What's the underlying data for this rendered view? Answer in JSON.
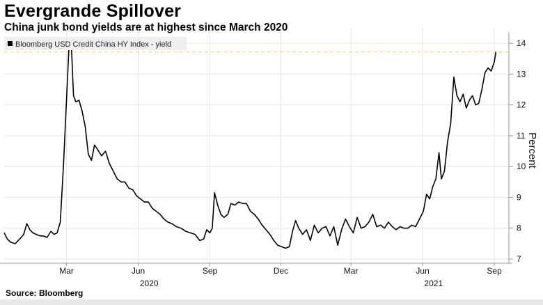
{
  "header": {
    "title": "Evergrande Spillover",
    "subtitle": "China junk bond yields are at highest since March 2020"
  },
  "footer": {
    "source": "Source: Bloomberg"
  },
  "colors": {
    "line": "#000000",
    "reference_line": "#f2e27a",
    "grid": "#e6e6e6",
    "legend_bg": "#efefef",
    "axis": "#9a9a9a"
  },
  "chart_data": {
    "type": "line",
    "title": "",
    "xlabel": "",
    "ylabel": "Percent",
    "legend": "Bloomberg USD Credit China HY Index - yield",
    "legend_position": "top-left",
    "grid": true,
    "ylim": [
      7,
      14.5
    ],
    "yticks": [
      7,
      8,
      9,
      10,
      11,
      12,
      13,
      14
    ],
    "xlim": [
      "2019-12-12",
      "2021-09-17"
    ],
    "xticks": [
      {
        "date": "2020-03-01",
        "label": "Mar"
      },
      {
        "date": "2020-06-01",
        "label": "Jun"
      },
      {
        "date": "2020-09-01",
        "label": "Sep"
      },
      {
        "date": "2020-12-01",
        "label": "Dec"
      },
      {
        "date": "2021-03-01",
        "label": "Mar"
      },
      {
        "date": "2021-06-01",
        "label": "Jun"
      },
      {
        "date": "2021-09-01",
        "label": "Sep"
      }
    ],
    "year_labels": [
      {
        "date": "2020-06-15",
        "label": "2020"
      },
      {
        "date": "2021-06-15",
        "label": "2021"
      }
    ],
    "reference_line": {
      "y": 13.72,
      "style": "dashed"
    },
    "series": [
      {
        "name": "Bloomberg USD Credit China HY Index - yield",
        "points": [
          [
            "2019-12-12",
            7.85
          ],
          [
            "2019-12-16",
            7.65
          ],
          [
            "2019-12-20",
            7.55
          ],
          [
            "2019-12-26",
            7.5
          ],
          [
            "2020-01-01",
            7.65
          ],
          [
            "2020-01-06",
            7.8
          ],
          [
            "2020-01-10",
            8.15
          ],
          [
            "2020-01-14",
            7.95
          ],
          [
            "2020-01-18",
            7.85
          ],
          [
            "2020-01-22",
            7.8
          ],
          [
            "2020-01-27",
            7.75
          ],
          [
            "2020-01-31",
            7.75
          ],
          [
            "2020-02-05",
            7.7
          ],
          [
            "2020-02-10",
            7.9
          ],
          [
            "2020-02-14",
            7.8
          ],
          [
            "2020-02-18",
            7.85
          ],
          [
            "2020-02-22",
            8.2
          ],
          [
            "2020-02-26",
            10.0
          ],
          [
            "2020-03-01",
            12.2
          ],
          [
            "2020-03-04",
            13.8
          ],
          [
            "2020-03-07",
            14.05
          ],
          [
            "2020-03-10",
            12.3
          ],
          [
            "2020-03-13",
            12.1
          ],
          [
            "2020-03-17",
            12.15
          ],
          [
            "2020-03-21",
            11.8
          ],
          [
            "2020-03-25",
            11.3
          ],
          [
            "2020-03-29",
            10.4
          ],
          [
            "2020-04-02",
            10.2
          ],
          [
            "2020-04-06",
            10.7
          ],
          [
            "2020-04-10",
            10.55
          ],
          [
            "2020-04-15",
            10.35
          ],
          [
            "2020-04-20",
            10.5
          ],
          [
            "2020-04-25",
            10.1
          ],
          [
            "2020-04-30",
            9.85
          ],
          [
            "2020-05-05",
            9.6
          ],
          [
            "2020-05-10",
            9.5
          ],
          [
            "2020-05-15",
            9.5
          ],
          [
            "2020-05-20",
            9.3
          ],
          [
            "2020-05-25",
            9.25
          ],
          [
            "2020-05-30",
            9.05
          ],
          [
            "2020-06-04",
            8.95
          ],
          [
            "2020-06-09",
            8.85
          ],
          [
            "2020-06-14",
            8.85
          ],
          [
            "2020-06-19",
            8.65
          ],
          [
            "2020-06-24",
            8.55
          ],
          [
            "2020-06-29",
            8.45
          ],
          [
            "2020-07-04",
            8.3
          ],
          [
            "2020-07-09",
            8.2
          ],
          [
            "2020-07-14",
            8.15
          ],
          [
            "2020-07-20",
            8.05
          ],
          [
            "2020-07-26",
            8.0
          ],
          [
            "2020-08-01",
            7.9
          ],
          [
            "2020-08-07",
            7.85
          ],
          [
            "2020-08-13",
            7.8
          ],
          [
            "2020-08-19",
            7.6
          ],
          [
            "2020-08-24",
            7.65
          ],
          [
            "2020-08-28",
            7.95
          ],
          [
            "2020-09-01",
            7.85
          ],
          [
            "2020-09-04",
            8.0
          ],
          [
            "2020-09-07",
            9.15
          ],
          [
            "2020-09-11",
            8.75
          ],
          [
            "2020-09-15",
            8.45
          ],
          [
            "2020-09-19",
            8.35
          ],
          [
            "2020-09-24",
            8.45
          ],
          [
            "2020-09-28",
            8.8
          ],
          [
            "2020-10-03",
            8.75
          ],
          [
            "2020-10-08",
            8.85
          ],
          [
            "2020-10-13",
            8.8
          ],
          [
            "2020-10-18",
            8.8
          ],
          [
            "2020-10-23",
            8.55
          ],
          [
            "2020-10-28",
            8.45
          ],
          [
            "2020-11-02",
            8.3
          ],
          [
            "2020-11-07",
            8.1
          ],
          [
            "2020-11-12",
            7.95
          ],
          [
            "2020-11-17",
            7.8
          ],
          [
            "2020-11-22",
            7.6
          ],
          [
            "2020-11-27",
            7.45
          ],
          [
            "2020-12-02",
            7.4
          ],
          [
            "2020-12-07",
            7.35
          ],
          [
            "2020-12-12",
            7.4
          ],
          [
            "2020-12-16",
            7.9
          ],
          [
            "2020-12-20",
            8.25
          ],
          [
            "2020-12-24",
            8.0
          ],
          [
            "2020-12-29",
            7.8
          ],
          [
            "2021-01-03",
            7.95
          ],
          [
            "2021-01-08",
            7.6
          ],
          [
            "2021-01-13",
            8.1
          ],
          [
            "2021-01-18",
            7.85
          ],
          [
            "2021-01-23",
            8.0
          ],
          [
            "2021-01-28",
            8.05
          ],
          [
            "2021-02-02",
            7.75
          ],
          [
            "2021-02-07",
            8.05
          ],
          [
            "2021-02-12",
            7.45
          ],
          [
            "2021-02-17",
            7.95
          ],
          [
            "2021-02-22",
            8.3
          ],
          [
            "2021-02-27",
            8.05
          ],
          [
            "2021-03-04",
            7.85
          ],
          [
            "2021-03-09",
            8.35
          ],
          [
            "2021-03-14",
            8.0
          ],
          [
            "2021-03-19",
            8.05
          ],
          [
            "2021-03-24",
            8.2
          ],
          [
            "2021-03-29",
            8.45
          ],
          [
            "2021-04-03",
            8.05
          ],
          [
            "2021-04-08",
            8.1
          ],
          [
            "2021-04-13",
            8.0
          ],
          [
            "2021-04-18",
            8.2
          ],
          [
            "2021-04-23",
            8.05
          ],
          [
            "2021-04-28",
            7.95
          ],
          [
            "2021-05-03",
            8.05
          ],
          [
            "2021-05-08",
            8.0
          ],
          [
            "2021-05-13",
            8.0
          ],
          [
            "2021-05-18",
            8.1
          ],
          [
            "2021-05-23",
            8.05
          ],
          [
            "2021-05-28",
            8.3
          ],
          [
            "2021-06-02",
            8.55
          ],
          [
            "2021-06-06",
            9.1
          ],
          [
            "2021-06-10",
            8.95
          ],
          [
            "2021-06-14",
            9.35
          ],
          [
            "2021-06-18",
            9.6
          ],
          [
            "2021-06-22",
            10.45
          ],
          [
            "2021-06-25",
            9.6
          ],
          [
            "2021-06-29",
            9.85
          ],
          [
            "2021-07-03",
            10.8
          ],
          [
            "2021-07-07",
            11.4
          ],
          [
            "2021-07-11",
            12.9
          ],
          [
            "2021-07-15",
            12.3
          ],
          [
            "2021-07-19",
            12.1
          ],
          [
            "2021-07-23",
            12.35
          ],
          [
            "2021-07-27",
            11.9
          ],
          [
            "2021-07-31",
            12.15
          ],
          [
            "2021-08-04",
            12.3
          ],
          [
            "2021-08-08",
            12.0
          ],
          [
            "2021-08-12",
            12.05
          ],
          [
            "2021-08-16",
            12.5
          ],
          [
            "2021-08-20",
            13.05
          ],
          [
            "2021-08-24",
            13.2
          ],
          [
            "2021-08-28",
            13.1
          ],
          [
            "2021-09-01",
            13.4
          ],
          [
            "2021-09-03",
            13.72
          ]
        ]
      }
    ]
  }
}
